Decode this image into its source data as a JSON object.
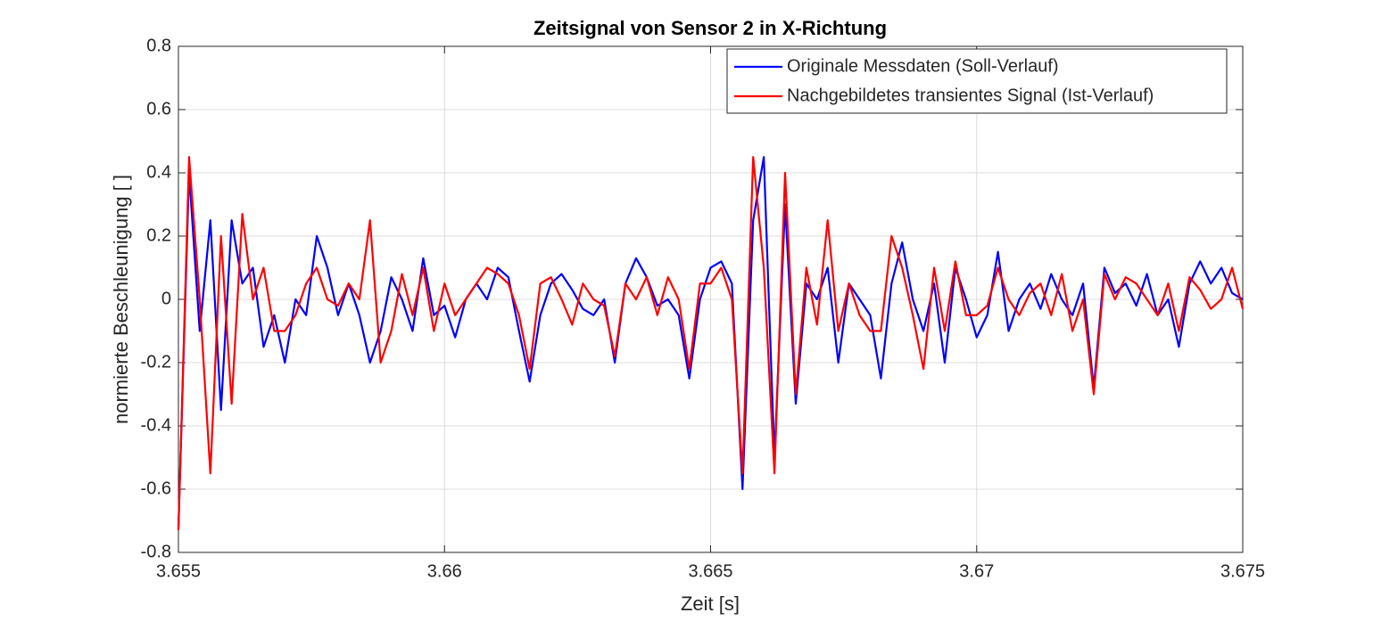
{
  "chart_data": {
    "type": "line",
    "title": "Zeitsignal von Sensor 2 in X-Richtung",
    "xlabel": "Zeit [s]",
    "ylabel": "normierte Beschleunigung [ ]",
    "x": [
      3.655,
      3.6552,
      3.6554,
      3.6556,
      3.6558,
      3.656,
      3.6562,
      3.6564,
      3.6566,
      3.6568,
      3.657,
      3.6572,
      3.6574,
      3.6576,
      3.6578,
      3.658,
      3.6582,
      3.6584,
      3.6586,
      3.6588,
      3.659,
      3.6592,
      3.6594,
      3.6596,
      3.6598,
      3.66,
      3.6602,
      3.6604,
      3.6606,
      3.6608,
      3.661,
      3.6612,
      3.6614,
      3.6616,
      3.6618,
      3.662,
      3.6622,
      3.6624,
      3.6626,
      3.6628,
      3.663,
      3.6632,
      3.6634,
      3.6636,
      3.6638,
      3.664,
      3.6642,
      3.6644,
      3.6646,
      3.6648,
      3.665,
      3.6652,
      3.6654,
      3.6656,
      3.6658,
      3.666,
      3.6662,
      3.6664,
      3.6666,
      3.6668,
      3.667,
      3.6672,
      3.6674,
      3.6676,
      3.6678,
      3.668,
      3.6682,
      3.6684,
      3.6686,
      3.6688,
      3.669,
      3.6692,
      3.6694,
      3.6696,
      3.6698,
      3.67,
      3.6702,
      3.6704,
      3.6706,
      3.6708,
      3.671,
      3.6712,
      3.6714,
      3.6716,
      3.6718,
      3.672,
      3.6722,
      3.6724,
      3.6726,
      3.6728,
      3.673,
      3.6732,
      3.6734,
      3.6736,
      3.6738,
      3.674,
      3.6742,
      3.6744,
      3.6746,
      3.6748,
      3.675
    ],
    "series": [
      {
        "name": "Originale Messdaten (Soll-Verlauf)",
        "color": "#0000ff",
        "values": [
          -0.72,
          0.4,
          -0.1,
          0.25,
          -0.35,
          0.25,
          0.05,
          0.1,
          -0.15,
          -0.05,
          -0.2,
          0.0,
          -0.05,
          0.2,
          0.1,
          -0.05,
          0.05,
          -0.05,
          -0.2,
          -0.1,
          0.07,
          0.0,
          -0.1,
          0.13,
          -0.05,
          -0.02,
          -0.12,
          0.0,
          0.05,
          0.0,
          0.1,
          0.07,
          -0.1,
          -0.26,
          -0.05,
          0.05,
          0.08,
          0.03,
          -0.03,
          -0.05,
          0.0,
          -0.2,
          0.05,
          0.13,
          0.07,
          -0.02,
          0.0,
          -0.05,
          -0.25,
          0.0,
          0.1,
          0.12,
          0.05,
          -0.6,
          0.25,
          0.45,
          -0.5,
          0.3,
          -0.33,
          0.05,
          0.0,
          0.1,
          -0.2,
          0.05,
          0.0,
          -0.05,
          -0.25,
          0.05,
          0.18,
          0.0,
          -0.1,
          0.05,
          -0.2,
          0.1,
          0.0,
          -0.12,
          -0.05,
          0.15,
          -0.1,
          0.0,
          0.05,
          -0.03,
          0.08,
          0.0,
          -0.05,
          0.05,
          -0.28,
          0.1,
          0.02,
          0.05,
          -0.02,
          0.08,
          -0.05,
          0.0,
          -0.15,
          0.05,
          0.12,
          0.05,
          0.1,
          0.02,
          0.0
        ]
      },
      {
        "name": "Nachgebildetes transientes Signal (Ist-Verlauf)",
        "color": "#ff0000",
        "values": [
          -0.73,
          0.45,
          0.0,
          -0.55,
          0.2,
          -0.33,
          0.27,
          0.0,
          0.1,
          -0.1,
          -0.1,
          -0.05,
          0.05,
          0.1,
          0.0,
          -0.02,
          0.05,
          0.0,
          0.25,
          -0.2,
          -0.1,
          0.08,
          -0.05,
          0.1,
          -0.1,
          0.05,
          -0.05,
          0.0,
          0.05,
          0.1,
          0.08,
          0.05,
          -0.05,
          -0.22,
          0.05,
          0.07,
          0.0,
          -0.08,
          0.05,
          0.0,
          -0.02,
          -0.18,
          0.05,
          0.0,
          0.07,
          -0.05,
          0.07,
          0.0,
          -0.22,
          0.05,
          0.05,
          0.1,
          0.0,
          -0.55,
          0.45,
          0.1,
          -0.55,
          0.4,
          -0.3,
          0.1,
          -0.08,
          0.25,
          -0.1,
          0.05,
          -0.05,
          -0.1,
          -0.1,
          0.2,
          0.1,
          -0.05,
          -0.22,
          0.1,
          -0.1,
          0.12,
          -0.05,
          -0.05,
          -0.02,
          0.1,
          0.0,
          -0.05,
          0.02,
          0.05,
          -0.05,
          0.08,
          -0.1,
          0.0,
          -0.3,
          0.08,
          0.0,
          0.07,
          0.05,
          0.0,
          -0.05,
          0.05,
          -0.1,
          0.07,
          0.03,
          -0.03,
          0.0,
          0.1,
          -0.03
        ]
      }
    ],
    "xlim": [
      3.655,
      3.675
    ],
    "xticks": [
      3.655,
      3.66,
      3.665,
      3.67,
      3.675
    ],
    "ylim": [
      -0.8,
      0.8
    ],
    "yticks": [
      -0.8,
      -0.6,
      -0.4,
      -0.2,
      0,
      0.2,
      0.4,
      0.6,
      0.8
    ],
    "grid": true,
    "legend": "top-right"
  }
}
